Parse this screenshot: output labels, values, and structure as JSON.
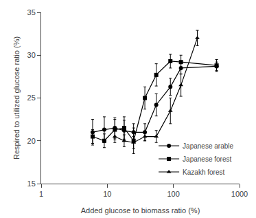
{
  "chart_data": {
    "type": "line",
    "xlabel": "Added glucose to biomass ratio (%)",
    "ylabel": "Respired to utilized glucose ratio (%)",
    "log": "x",
    "xlim": [
      1,
      1000
    ],
    "xticks": [
      1,
      10,
      100,
      1000
    ],
    "ylim": [
      15,
      35
    ],
    "yticks": [
      15,
      20,
      25,
      30,
      35
    ],
    "grid": false,
    "legend": "lower right",
    "series": [
      {
        "name": "Japanese arable",
        "color": "#000000",
        "marker": "circle",
        "line_style": "solid",
        "x": [
          6,
          9,
          13,
          18,
          25,
          37,
          55,
          90,
          130,
          450
        ],
        "values": [
          21.0,
          21.3,
          21.5,
          21.2,
          21.0,
          21.0,
          24.2,
          26.3,
          28.5,
          28.7
        ],
        "yerr": [
          1.5,
          1.5,
          1.2,
          1.2,
          1.0,
          1.0,
          1.3,
          1.0,
          0.7,
          0.5
        ]
      },
      {
        "name": "Japanese forest",
        "color": "#000000",
        "marker": "square",
        "line_style": "solid",
        "x": [
          6,
          9,
          13,
          18,
          25,
          37,
          55,
          90,
          130,
          450
        ],
        "values": [
          20.5,
          20.0,
          21.3,
          21.5,
          20.0,
          25.0,
          27.7,
          29.3,
          29.2,
          28.8
        ],
        "yerr": [
          0.8,
          0.8,
          1.2,
          1.3,
          1.5,
          1.3,
          1.3,
          0.8,
          0.8,
          0.7
        ]
      },
      {
        "name": "Kazakh forest",
        "color": "#000000",
        "marker": "triangle-up",
        "line_style": "solid",
        "x": [
          13,
          18,
          25,
          37,
          55,
          90,
          130,
          230
        ],
        "values": [
          20.5,
          20.0,
          19.8,
          20.5,
          20.5,
          23.5,
          26.5,
          32.0
        ],
        "yerr": [
          0.7,
          0.7,
          0.7,
          0.5,
          0.7,
          1.5,
          1.3,
          0.9
        ]
      }
    ]
  }
}
